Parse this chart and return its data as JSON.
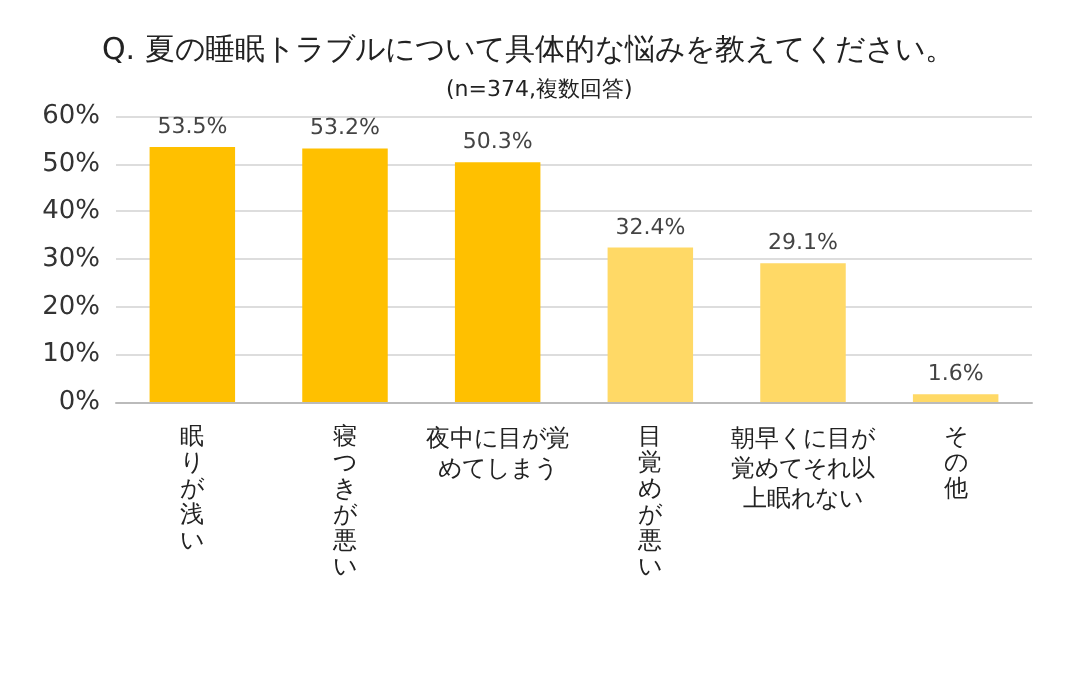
{
  "chart_data": {
    "type": "bar",
    "title": "Q. 夏の睡眠トラブルについて具体的な悩みを教えてください。",
    "subtitle": "(n=374,複数回答)",
    "categories": [
      "眠りが浅い",
      "寝つきが悪い",
      "夜中に目が覚めてしまう",
      "目覚めが悪い",
      "朝早くに目が覚めてそれ以上眠れない",
      "その他"
    ],
    "values": [
      53.5,
      53.2,
      50.3,
      32.4,
      29.1,
      1.6
    ],
    "colors": [
      "#ffc000",
      "#ffc000",
      "#ffc000",
      "#ffd966",
      "#ffd966",
      "#ffd966"
    ],
    "value_labels": [
      "53.5%",
      "53.2%",
      "50.3%",
      "32.4%",
      "29.1%",
      "1.6%"
    ],
    "ylim": [
      0,
      60
    ],
    "yticks": [
      {
        "value": 0,
        "label": "0%"
      },
      {
        "value": 10,
        "label": "10%"
      },
      {
        "value": 20,
        "label": "20%"
      },
      {
        "value": 30,
        "label": "30%"
      },
      {
        "value": 40,
        "label": "40%"
      },
      {
        "value": 50,
        "label": "50%"
      },
      {
        "value": 60,
        "label": "60%"
      }
    ],
    "grid": "y"
  }
}
